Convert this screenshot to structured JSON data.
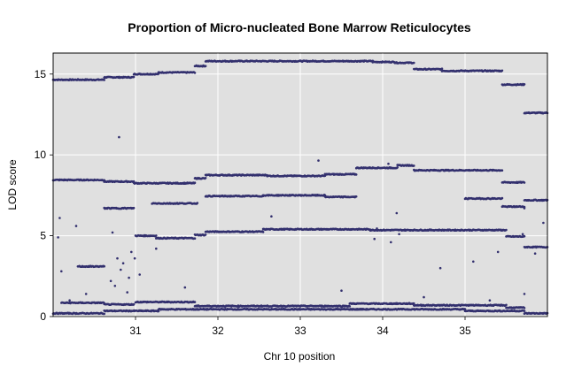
{
  "chart_data": {
    "type": "scatter",
    "title": "Proportion of Micro-nucleated Bone Marrow Reticulocytes",
    "xlabel": "Chr 10 position",
    "ylabel": "LOD score",
    "xlim": [
      30.0,
      36.0
    ],
    "ylim": [
      0,
      16.3
    ],
    "xticks": [
      31,
      32,
      33,
      34,
      35
    ],
    "yticks": [
      0,
      5,
      10,
      15
    ],
    "grid": true,
    "background": "#e0e0e0",
    "grid_color": "#ffffff",
    "point_color": "#33306e",
    "series": [
      {
        "segments": [
          [
            30.0,
            30.62,
            14.65
          ],
          [
            30.62,
            30.98,
            14.8
          ],
          [
            30.98,
            31.28,
            15.0
          ],
          [
            31.28,
            31.72,
            15.1
          ],
          [
            31.72,
            31.85,
            15.5
          ],
          [
            31.85,
            33.88,
            15.8
          ],
          [
            33.88,
            34.15,
            15.75
          ],
          [
            34.15,
            34.38,
            15.7
          ],
          [
            34.38,
            34.72,
            15.3
          ],
          [
            34.72,
            35.45,
            15.2
          ],
          [
            35.45,
            35.72,
            14.35
          ],
          [
            35.72,
            36.0,
            12.6
          ]
        ]
      },
      {
        "segments": [
          [
            30.0,
            30.62,
            8.45
          ],
          [
            30.62,
            30.98,
            8.35
          ],
          [
            30.98,
            31.72,
            8.25
          ],
          [
            31.72,
            31.85,
            8.55
          ],
          [
            31.85,
            32.6,
            8.75
          ],
          [
            32.6,
            33.3,
            8.7
          ],
          [
            33.3,
            33.68,
            8.8
          ],
          [
            33.68,
            34.18,
            9.2
          ],
          [
            34.18,
            34.38,
            9.35
          ],
          [
            34.38,
            35.45,
            9.05
          ],
          [
            35.45,
            35.72,
            8.3
          ],
          [
            35.72,
            36.0,
            7.2
          ]
        ]
      },
      {
        "segments": [
          [
            31.0,
            31.25,
            5.0
          ],
          [
            31.25,
            31.72,
            4.85
          ],
          [
            31.72,
            31.85,
            5.05
          ],
          [
            31.85,
            32.55,
            5.25
          ],
          [
            32.55,
            33.85,
            5.4
          ],
          [
            33.85,
            35.5,
            5.35
          ],
          [
            35.5,
            35.72,
            4.95
          ],
          [
            35.72,
            36.0,
            4.3
          ]
        ]
      },
      {
        "segments": [
          [
            30.0,
            30.62,
            0.2
          ],
          [
            30.62,
            31.28,
            0.35
          ],
          [
            31.28,
            33.68,
            0.45
          ],
          [
            33.68,
            35.0,
            0.45
          ],
          [
            35.0,
            35.72,
            0.35
          ],
          [
            35.72,
            36.0,
            0.2
          ]
        ]
      },
      {
        "segments": [
          [
            30.1,
            30.62,
            0.85
          ],
          [
            30.62,
            30.98,
            0.75
          ],
          [
            31.0,
            31.72,
            0.9
          ],
          [
            31.72,
            33.6,
            0.65
          ],
          [
            33.6,
            34.38,
            0.8
          ],
          [
            34.38,
            35.5,
            0.7
          ],
          [
            35.5,
            35.72,
            0.55
          ]
        ]
      },
      {
        "segments": [
          [
            30.3,
            30.62,
            3.1
          ],
          [
            30.62,
            30.98,
            6.7
          ],
          [
            31.2,
            31.75,
            7.0
          ],
          [
            31.85,
            32.55,
            7.45
          ],
          [
            32.55,
            33.3,
            7.5
          ],
          [
            33.3,
            33.68,
            7.4
          ],
          [
            35.0,
            35.45,
            7.3
          ],
          [
            35.45,
            35.72,
            6.8
          ]
        ]
      },
      {
        "points": [
          [
            30.8,
            11.1
          ],
          [
            30.06,
            4.9
          ],
          [
            30.08,
            6.1
          ],
          [
            30.28,
            5.6
          ],
          [
            30.72,
            5.2
          ],
          [
            30.78,
            3.6
          ],
          [
            30.82,
            2.9
          ],
          [
            30.9,
            1.5
          ],
          [
            30.95,
            4.0
          ],
          [
            30.99,
            3.6
          ],
          [
            31.05,
            2.6
          ],
          [
            30.7,
            2.2
          ],
          [
            30.75,
            1.9
          ],
          [
            30.85,
            3.3
          ],
          [
            30.92,
            2.4
          ],
          [
            31.25,
            4.2
          ],
          [
            32.65,
            6.2
          ],
          [
            33.22,
            9.65
          ],
          [
            34.07,
            9.45
          ],
          [
            34.17,
            6.4
          ],
          [
            34.2,
            5.1
          ],
          [
            34.1,
            4.6
          ],
          [
            33.93,
            5.45
          ],
          [
            35.1,
            3.4
          ],
          [
            35.4,
            4.0
          ],
          [
            35.72,
            1.4
          ],
          [
            35.72,
            6.7
          ],
          [
            35.95,
            5.8
          ],
          [
            33.9,
            4.8
          ],
          [
            34.7,
            3.0
          ],
          [
            30.1,
            2.8
          ],
          [
            30.2,
            1.0
          ],
          [
            30.4,
            1.4
          ],
          [
            31.6,
            1.8
          ],
          [
            33.5,
            1.6
          ],
          [
            34.5,
            1.2
          ],
          [
            35.3,
            1.0
          ],
          [
            35.7,
            5.1
          ],
          [
            35.85,
            3.9
          ]
        ]
      }
    ]
  }
}
